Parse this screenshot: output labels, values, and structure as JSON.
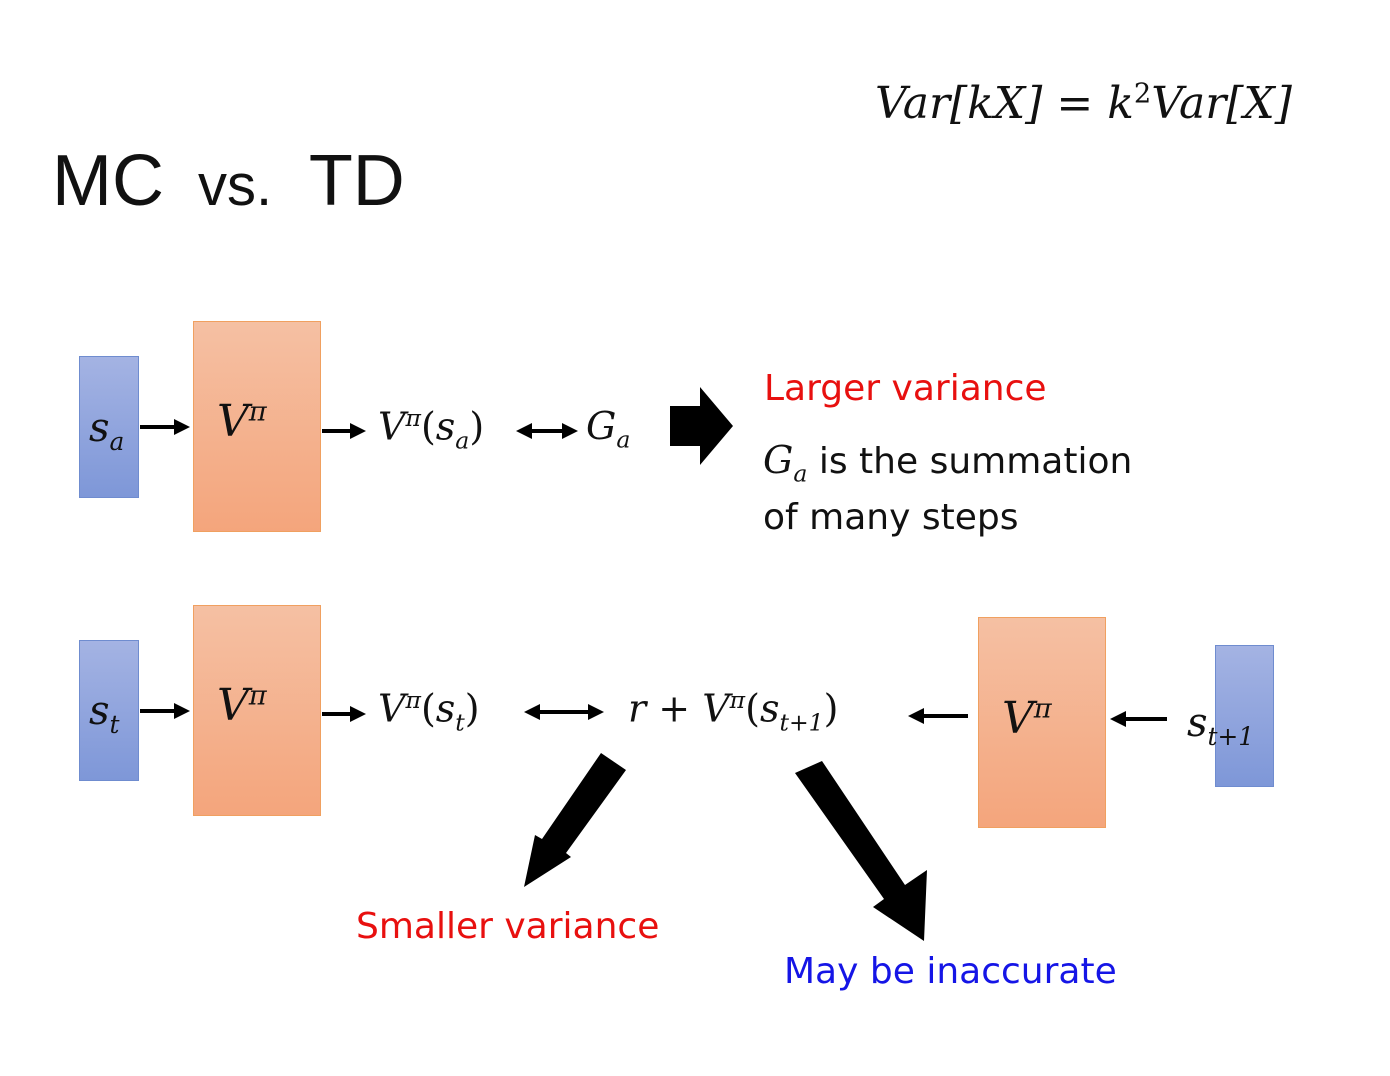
{
  "title": {
    "mc": "MC",
    "vs": "vs.",
    "td": "TD"
  },
  "formula": {
    "lhs_var": "Var",
    "lhs_arg": "[kX]",
    "eq": "=",
    "k": "k",
    "exp": "2",
    "rhs_var": "Var",
    "rhs_arg": "[X]"
  },
  "mc_row": {
    "input": {
      "base": "s",
      "sub": "a"
    },
    "value_fn": {
      "base": "V",
      "sup": "π"
    },
    "output": {
      "base": "V",
      "sup": "π",
      "open": "(",
      "arg": "s",
      "sub": "a",
      "close": ")"
    },
    "target": {
      "base": "G",
      "sub": "a"
    },
    "conclusion": "Larger variance",
    "explanation": {
      "sym": "G",
      "sub": "a",
      "line1": "is the summation",
      "line2": "of many steps"
    }
  },
  "td_row": {
    "input": {
      "base": "s",
      "sub": "t"
    },
    "value_fn": {
      "base": "V",
      "sup": "π"
    },
    "output": {
      "base": "V",
      "sup": "π",
      "open": "(",
      "arg": "s",
      "sub": "t",
      "close": ")"
    },
    "target": {
      "r": "r",
      "plus": "+",
      "base": "V",
      "sup": "π",
      "open": "(",
      "arg": "s",
      "sub": "t+1",
      "close": ")"
    },
    "value_fn2": {
      "base": "V",
      "sup": "π"
    },
    "input2": {
      "base": "s",
      "sub": "t+1"
    },
    "note_variance": "Smaller variance",
    "note_accuracy": "May be inaccurate"
  },
  "colors": {
    "red": "#e8100f",
    "blue": "#1515e6",
    "box_blue": "#8fa4dd",
    "box_orange": "#f4b08c"
  }
}
